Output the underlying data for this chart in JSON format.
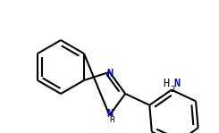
{
  "background_color": "#ffffff",
  "atom_color": "#000000",
  "n_color": "#0000cc",
  "bond_color": "#000000",
  "bond_width": 1.5,
  "figsize": [
    2.45,
    1.49
  ],
  "dpi": 100,
  "xlim": [
    0,
    2.45
  ],
  "ylim": [
    0,
    1.49
  ]
}
